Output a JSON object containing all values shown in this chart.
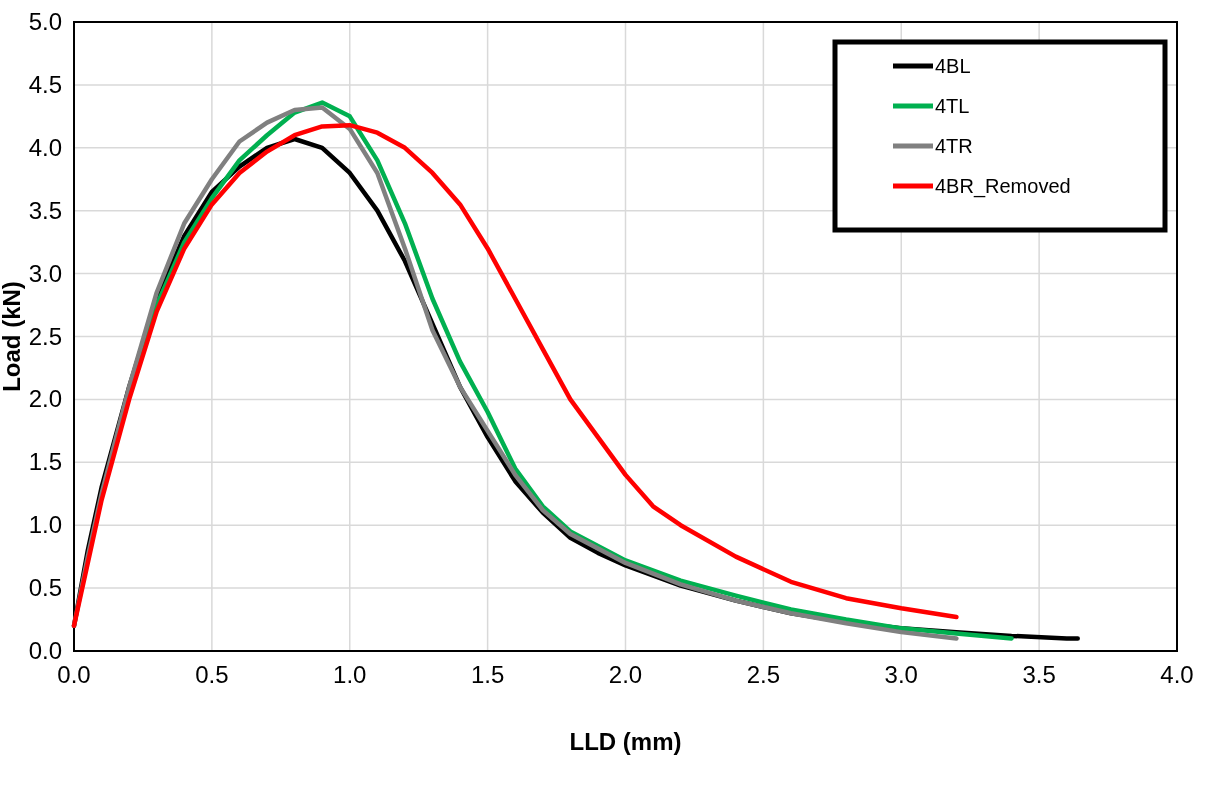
{
  "chart_data": {
    "type": "line",
    "xlabel": "LLD (mm)",
    "ylabel": "Load (kN)",
    "xlim": [
      0,
      4
    ],
    "ylim": [
      0,
      5
    ],
    "xticks": [
      {
        "value": 0,
        "label": "0.0"
      },
      {
        "value": 0.5,
        "label": "0.5"
      },
      {
        "value": 1,
        "label": "1.0"
      },
      {
        "value": 1.5,
        "label": "1.5"
      },
      {
        "value": 2,
        "label": "2.0"
      },
      {
        "value": 2.5,
        "label": "2.5"
      },
      {
        "value": 3,
        "label": "3.0"
      },
      {
        "value": 3.5,
        "label": "3.5"
      },
      {
        "value": 4,
        "label": "4.0"
      }
    ],
    "yticks": [
      {
        "value": 0,
        "label": "0.0"
      },
      {
        "value": 0.5,
        "label": "0.5"
      },
      {
        "value": 1,
        "label": "1.0"
      },
      {
        "value": 1.5,
        "label": "1.5"
      },
      {
        "value": 2,
        "label": "2.0"
      },
      {
        "value": 2.5,
        "label": "2.5"
      },
      {
        "value": 3,
        "label": "3.0"
      },
      {
        "value": 3.5,
        "label": "3.5"
      },
      {
        "value": 4,
        "label": "4.0"
      },
      {
        "value": 4.5,
        "label": "4.5"
      },
      {
        "value": 5,
        "label": "5.0"
      }
    ],
    "grid": true,
    "legend": "top right",
    "marker": "none",
    "line_style": "solid",
    "series": [
      {
        "name": "4BL",
        "color": "#000000",
        "x": [
          0,
          0.05,
          0.1,
          0.2,
          0.3,
          0.4,
          0.5,
          0.6,
          0.7,
          0.8,
          0.9,
          1.0,
          1.1,
          1.2,
          1.3,
          1.4,
          1.5,
          1.6,
          1.7,
          1.8,
          1.9,
          2.0,
          2.2,
          2.4,
          2.6,
          2.8,
          3.0,
          3.2,
          3.4,
          3.6,
          3.64
        ],
        "values": [
          0.2,
          0.8,
          1.3,
          2.1,
          2.8,
          3.3,
          3.65,
          3.85,
          4.0,
          4.07,
          4.0,
          3.8,
          3.5,
          3.1,
          2.6,
          2.1,
          1.7,
          1.35,
          1.1,
          0.9,
          0.78,
          0.68,
          0.52,
          0.4,
          0.3,
          0.23,
          0.18,
          0.15,
          0.12,
          0.1,
          0.1
        ]
      },
      {
        "name": "4TL",
        "color": "#00b050",
        "x": [
          0.2,
          0.3,
          0.4,
          0.5,
          0.6,
          0.7,
          0.8,
          0.9,
          1.0,
          1.1,
          1.2,
          1.3,
          1.4,
          1.5,
          1.6,
          1.7,
          1.8,
          2.0,
          2.2,
          2.4,
          2.6,
          2.8,
          3.0,
          3.2,
          3.4
        ],
        "values": [
          2.05,
          2.75,
          3.25,
          3.6,
          3.9,
          4.1,
          4.28,
          4.36,
          4.25,
          3.9,
          3.4,
          2.8,
          2.3,
          1.9,
          1.45,
          1.15,
          0.95,
          0.72,
          0.56,
          0.44,
          0.33,
          0.25,
          0.18,
          0.14,
          0.1
        ]
      },
      {
        "name": "4TR",
        "color": "#808080",
        "x": [
          0,
          0.05,
          0.1,
          0.2,
          0.3,
          0.4,
          0.5,
          0.6,
          0.7,
          0.8,
          0.9,
          1.0,
          1.1,
          1.2,
          1.3,
          1.4,
          1.5,
          1.6,
          1.7,
          1.8,
          2.0,
          2.2,
          2.4,
          2.6,
          2.8,
          3.0,
          3.2
        ],
        "values": [
          0.2,
          0.75,
          1.25,
          2.1,
          2.85,
          3.4,
          3.75,
          4.05,
          4.2,
          4.3,
          4.32,
          4.15,
          3.8,
          3.2,
          2.55,
          2.1,
          1.75,
          1.4,
          1.12,
          0.93,
          0.7,
          0.53,
          0.4,
          0.3,
          0.22,
          0.15,
          0.1
        ]
      },
      {
        "name": "4BR_Removed",
        "color": "#ff0000",
        "x": [
          0,
          0.05,
          0.1,
          0.2,
          0.3,
          0.4,
          0.5,
          0.6,
          0.7,
          0.8,
          0.9,
          1.0,
          1.1,
          1.2,
          1.3,
          1.4,
          1.5,
          1.6,
          1.7,
          1.8,
          1.9,
          2.0,
          2.1,
          2.2,
          2.4,
          2.6,
          2.8,
          3.0,
          3.2
        ],
        "values": [
          0.2,
          0.7,
          1.2,
          2.0,
          2.7,
          3.2,
          3.55,
          3.8,
          3.97,
          4.1,
          4.17,
          4.18,
          4.12,
          4.0,
          3.8,
          3.55,
          3.2,
          2.8,
          2.4,
          2.0,
          1.7,
          1.4,
          1.15,
          1.0,
          0.75,
          0.55,
          0.42,
          0.34,
          0.27
        ]
      }
    ]
  }
}
